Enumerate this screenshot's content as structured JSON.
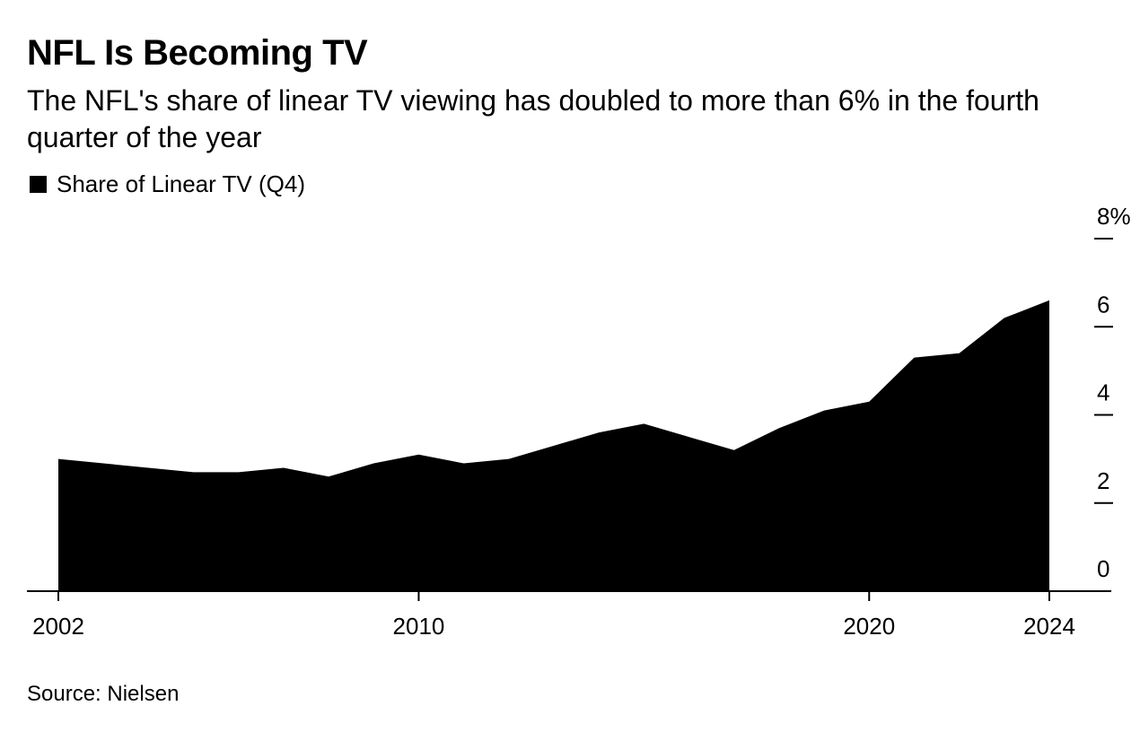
{
  "title": "NFL Is Becoming TV",
  "subtitle": "The NFL's share of linear TV viewing has doubled to more than 6% in the fourth quarter of the year",
  "legend": {
    "label": "Share of Linear TV (Q4)",
    "color": "#000000"
  },
  "source": "Source: Nielsen",
  "chart_data": {
    "type": "area",
    "x": [
      2002,
      2003,
      2004,
      2005,
      2006,
      2007,
      2008,
      2009,
      2010,
      2011,
      2012,
      2013,
      2014,
      2015,
      2016,
      2017,
      2018,
      2019,
      2020,
      2021,
      2022,
      2023,
      2024
    ],
    "series": [
      {
        "name": "Share of Linear TV (Q4)",
        "values": [
          3.0,
          2.9,
          2.8,
          2.7,
          2.7,
          2.8,
          2.6,
          2.9,
          3.1,
          2.9,
          3.0,
          3.3,
          3.6,
          3.8,
          3.5,
          3.2,
          3.7,
          4.1,
          4.3,
          5.3,
          5.4,
          6.2,
          6.6
        ],
        "color": "#000000"
      }
    ],
    "x_ticks": [
      "2002",
      "2010",
      "2020",
      "2024"
    ],
    "y_ticks": [
      "8%",
      "6",
      "4",
      "2",
      "0"
    ],
    "xlim": [
      2002,
      2024
    ],
    "ylim": [
      0,
      8
    ],
    "y_axis_side": "right",
    "grid": false,
    "legend_position": "top-left"
  }
}
